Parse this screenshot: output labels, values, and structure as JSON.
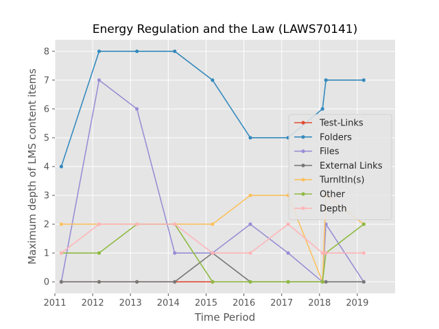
{
  "chart_data": {
    "type": "line",
    "title": "Energy Regulation and the Law (LAWS70141)",
    "xlabel": "Time Period",
    "ylabel": "Maximum depth of LMS content items",
    "xlim": [
      2011.0,
      2020.0
    ],
    "ylim": [
      -0.4,
      8.4
    ],
    "xticks": [
      2011,
      2012,
      2013,
      2014,
      2015,
      2016,
      2017,
      2018,
      2019
    ],
    "xtick_labels": [
      "2011",
      "2012",
      "2013",
      "2014",
      "2015",
      "2016",
      "2017",
      "2018",
      "2019"
    ],
    "yticks": [
      0,
      1,
      2,
      3,
      4,
      5,
      6,
      7,
      8
    ],
    "ytick_labels": [
      "0",
      "1",
      "2",
      "3",
      "4",
      "5",
      "6",
      "7",
      "8"
    ],
    "grid": true,
    "legend_position": "center-right",
    "series": [
      {
        "name": "Test-Links",
        "color": "#E24A33",
        "x": [
          2011.17,
          2012.17,
          2013.17,
          2014.17,
          2015.17
        ],
        "y": [
          0,
          0,
          0,
          0,
          0
        ]
      },
      {
        "name": "Folders",
        "color": "#348ABD",
        "x": [
          2011.17,
          2012.17,
          2013.17,
          2014.17,
          2015.17,
          2016.17,
          2017.17,
          2018.08,
          2018.17,
          2019.17
        ],
        "y": [
          4,
          8,
          8,
          8,
          7,
          5,
          5,
          6,
          7,
          7
        ]
      },
      {
        "name": "Files",
        "color": "#988ED5",
        "x": [
          2011.17,
          2012.17,
          2013.17,
          2014.17,
          2015.17,
          2016.17,
          2017.17,
          2018.08,
          2018.17,
          2019.17
        ],
        "y": [
          0,
          7,
          6,
          1,
          1,
          2,
          1,
          0,
          2,
          0
        ]
      },
      {
        "name": "External Links",
        "color": "#777777",
        "x": [
          2011.17,
          2012.17,
          2013.17,
          2014.17,
          2015.17,
          2016.17,
          2017.17,
          2018.08,
          2018.17,
          2019.17
        ],
        "y": [
          0,
          0,
          0,
          0,
          1,
          0,
          0,
          0,
          0,
          0
        ]
      },
      {
        "name": "TurnItIn(s)",
        "color": "#FBC15E",
        "x": [
          2011.17,
          2012.17,
          2013.17,
          2014.17,
          2015.17,
          2016.17,
          2017.17,
          2018.08,
          2018.17,
          2019.17
        ],
        "y": [
          2,
          2,
          2,
          2,
          2,
          3,
          3,
          0,
          3,
          2
        ]
      },
      {
        "name": "Other",
        "color": "#8EBA42",
        "x": [
          2011.17,
          2012.17,
          2013.17,
          2014.17,
          2015.17,
          2016.17,
          2017.17,
          2018.08,
          2018.17,
          2019.17
        ],
        "y": [
          1,
          1,
          2,
          2,
          0,
          0,
          0,
          0,
          1,
          2
        ]
      },
      {
        "name": "Depth",
        "color": "#FFB5B8",
        "x": [
          2011.17,
          2012.17,
          2013.17,
          2014.17,
          2015.17,
          2016.17,
          2017.17,
          2018.08,
          2018.17,
          2019.17
        ],
        "y": [
          1,
          2,
          2,
          2,
          1,
          1,
          2,
          1,
          1,
          1
        ]
      }
    ]
  },
  "style": {
    "plot_background": "#E5E5E5",
    "grid_color": "#FFFFFF",
    "tick_color": "#555555"
  }
}
